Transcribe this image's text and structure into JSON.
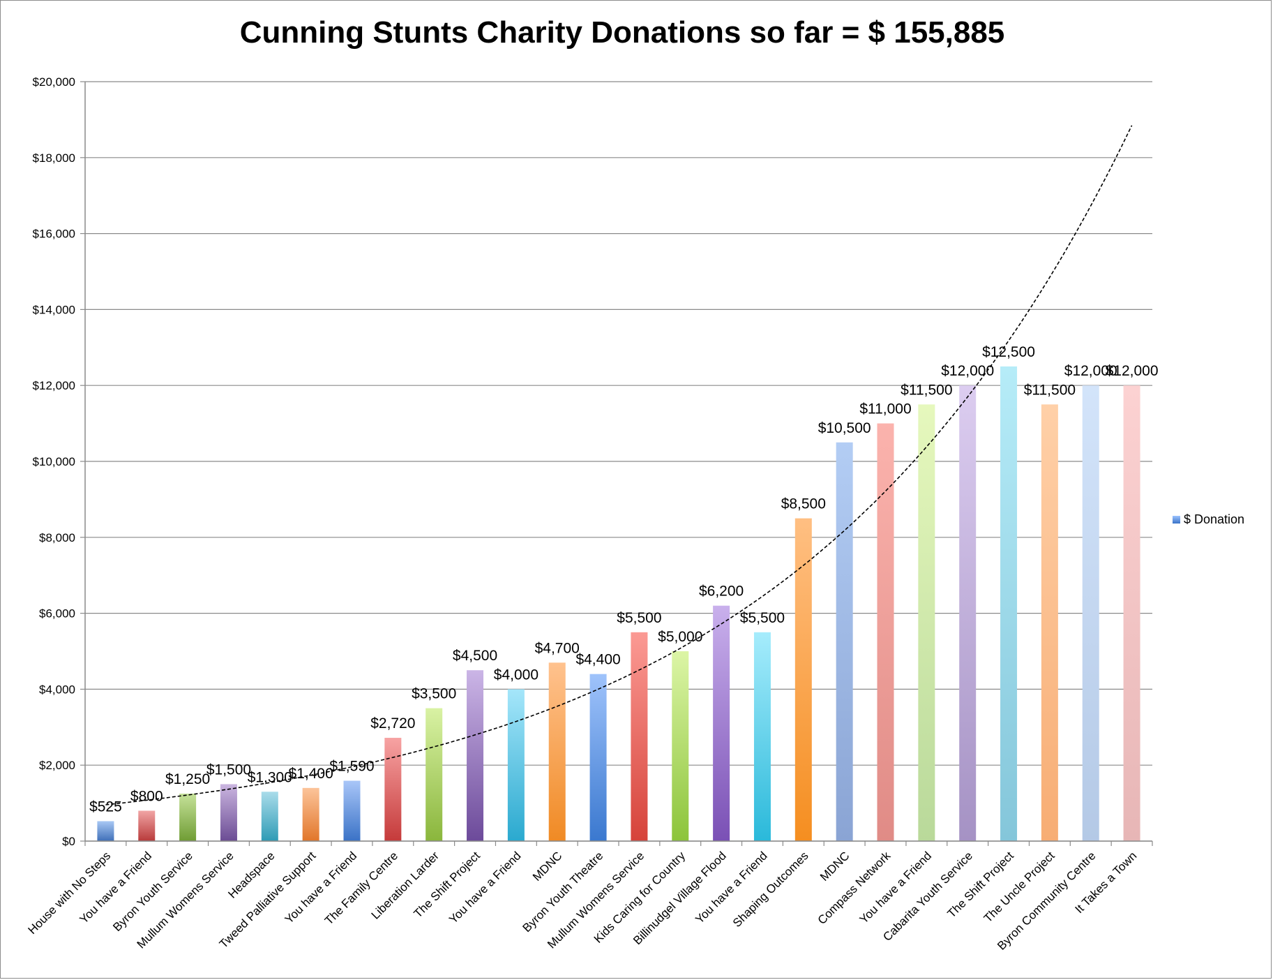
{
  "chart_data": {
    "type": "bar",
    "title": "Cunning Stunts Charity Donations so far = $ 155,885",
    "xlabel": "",
    "ylabel": "",
    "ylim": [
      0,
      20000
    ],
    "y_ticks": [
      0,
      2000,
      4000,
      6000,
      8000,
      10000,
      12000,
      14000,
      16000,
      18000,
      20000
    ],
    "y_tick_labels": [
      "$0",
      "$2,000",
      "$4,000",
      "$6,000",
      "$8,000",
      "$10,000",
      "$12,000",
      "$14,000",
      "$16,000",
      "$18,000",
      "$20,000"
    ],
    "grid": true,
    "legend_position": "right",
    "categories": [
      "House with No Steps",
      "You have a Friend",
      "Byron Youth Service",
      "Mullum Womens Service",
      "Headspace",
      "Tweed Palliative Support",
      "You have a Friend",
      "The Family Centre",
      "Liberation Larder",
      "The Shift Project",
      "You have a Friend",
      "MDNC",
      "Byron Youth Theatre",
      "Mullum Womens Service",
      "Kids Caring for Country",
      "Billinudgel Village Flood",
      "You have a Friend",
      "Shaping Outcomes",
      "MDNC",
      "Compass Network",
      "You have a Friend",
      "Cabarita Youth Service",
      "The Shift Project",
      "The Uncle Project",
      "Byron Community Centre",
      "It Takes a Town"
    ],
    "series": [
      {
        "name": "$ Donation",
        "values": [
          525,
          800,
          1250,
          1500,
          1300,
          1400,
          1590,
          2720,
          3500,
          4500,
          4000,
          4700,
          4400,
          5500,
          5000,
          6200,
          5500,
          8500,
          10500,
          11000,
          11500,
          12000,
          12500,
          11500,
          12000,
          12000
        ],
        "data_labels": [
          "$525",
          "$800",
          "$1,250",
          "$1,500",
          "$1,300",
          "$1,400",
          "$1,590",
          "$2,720",
          "$3,500",
          "$4,500",
          "$4,000",
          "$4,700",
          "$4,400",
          "$5,500",
          "$5,000",
          "$6,200",
          "$5,500",
          "$8,500",
          "$10,500",
          "$11,000",
          "$11,500",
          "$12,000",
          "$12,500",
          "$11,500",
          "$12,000",
          "$12,000"
        ]
      }
    ],
    "trendline": {
      "type": "exponential",
      "style": "dashed",
      "color": "#000000"
    },
    "bar_colors": [
      [
        "#a8c8f4",
        "#3f6fb8"
      ],
      [
        "#f1a5a5",
        "#b83a3a"
      ],
      [
        "#c6e29a",
        "#6f9c34"
      ],
      [
        "#cbb6e0",
        "#6b4c94"
      ],
      [
        "#a9dcea",
        "#2e9bb5"
      ],
      [
        "#fcc49a",
        "#e1762a"
      ],
      [
        "#a9c6f8",
        "#3a72c6"
      ],
      [
        "#f7a3a3",
        "#c53a3a"
      ],
      [
        "#d9f2a4",
        "#8ab63c"
      ],
      [
        "#cbb5e6",
        "#6c4a9a"
      ],
      [
        "#a5e6fa",
        "#2aa9cf"
      ],
      [
        "#ffc28e",
        "#f08a24"
      ],
      [
        "#9fc3fb",
        "#3a78cf"
      ],
      [
        "#fb9a94",
        "#d6433a"
      ],
      [
        "#dcf5a6",
        "#8cc43a"
      ],
      [
        "#c9b0ec",
        "#7a50b5"
      ],
      [
        "#a6ecfc",
        "#2ab9da"
      ],
      [
        "#ffbf82",
        "#f58e20"
      ],
      [
        "#b3cdf4",
        "#8aa4d4"
      ],
      [
        "#fbb3ad",
        "#e08b86"
      ],
      [
        "#e6f8bd",
        "#b9d99a"
      ],
      [
        "#dccdf0",
        "#a592c4"
      ],
      [
        "#b6ecf8",
        "#84c6da"
      ],
      [
        "#ffd0a8",
        "#f7ad74"
      ],
      [
        "#d3e4fa",
        "#b4c9e6"
      ],
      [
        "#fcd2d2",
        "#e7b6b6"
      ]
    ]
  }
}
